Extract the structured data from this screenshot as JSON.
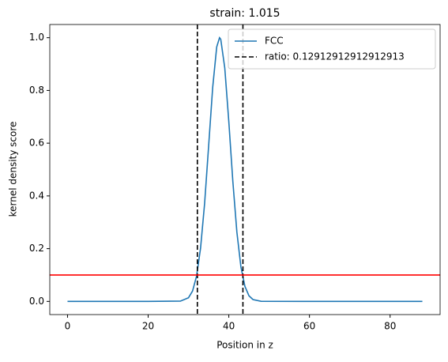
{
  "chart_data": {
    "type": "line",
    "title": "strain: 1.015",
    "xlabel": "Position in z",
    "ylabel": "kernel density score",
    "x": [
      0,
      10,
      20,
      28,
      30,
      31,
      32,
      33,
      34,
      35,
      36,
      37,
      37.7,
      38,
      39,
      40,
      41,
      42,
      43,
      44,
      45,
      46,
      48,
      60,
      70,
      80,
      88
    ],
    "series": [
      {
        "name": "FCC",
        "color": "#1f77b4",
        "values": [
          0,
          0,
          0,
          0.0011,
          0.0138,
          0.039,
          0.0955,
          0.2025,
          0.3716,
          0.59,
          0.811,
          0.965,
          1.0,
          0.994,
          0.885,
          0.682,
          0.455,
          0.263,
          0.131,
          0.0567,
          0.0212,
          0.0069,
          0.0005,
          0,
          0,
          0,
          0
        ]
      }
    ],
    "vlines": {
      "name": "ratio: 0.12912912912912913",
      "color": "#000000",
      "values": [
        32.2,
        43.5
      ]
    },
    "hlines": [
      {
        "value": 0.1,
        "color": "#ff0000"
      }
    ],
    "xlim": [
      -4.4,
      92.4
    ],
    "ylim": [
      -0.05,
      1.05
    ],
    "xticks": [
      0,
      20,
      40,
      60,
      80
    ],
    "yticks": [
      {
        "value": 0,
        "label": "0.0"
      },
      0.2,
      0.4,
      0.6,
      0.8,
      {
        "value": 1,
        "label": "1.0"
      }
    ],
    "legend": "upper right"
  }
}
